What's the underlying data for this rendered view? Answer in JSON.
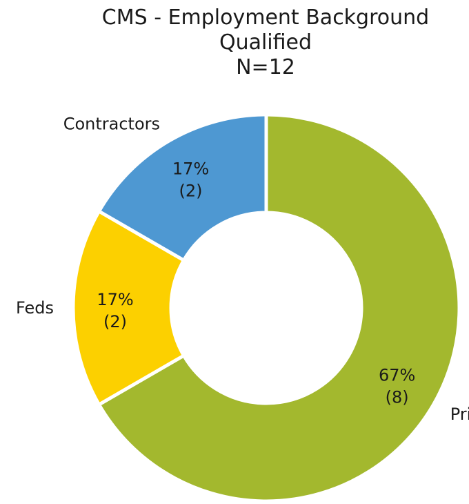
{
  "chart_data": {
    "type": "pie",
    "subtype": "donut",
    "title_lines": [
      "CMS - Employment Background",
      "Qualified",
      "N=12"
    ],
    "slices": [
      {
        "label": "Private Sector",
        "value": 8,
        "percent_label": "67%",
        "count_label": "(8)",
        "color": "#a3b82e"
      },
      {
        "label": "Feds",
        "value": 2,
        "percent_label": "17%",
        "count_label": "(2)",
        "color": "#fcd000"
      },
      {
        "label": "Contractors",
        "value": 2,
        "percent_label": "17%",
        "count_label": "(2)",
        "color": "#4e98d2"
      }
    ],
    "total": 12,
    "direction": "clockwise",
    "start": "top"
  }
}
